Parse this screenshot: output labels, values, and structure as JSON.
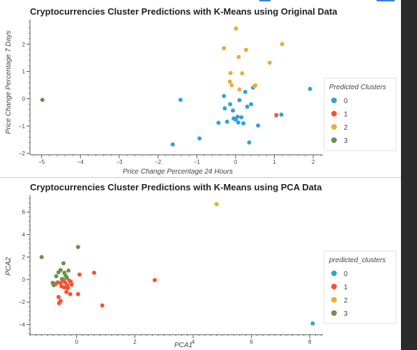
{
  "colors": {
    "cluster_0": "#30a2da",
    "cluster_1": "#fc4f30",
    "cluster_2": "#e5ae38",
    "cluster_3": "#6d904f"
  },
  "chart_data": [
    {
      "type": "scatter",
      "title": "Cryptocurrencies Cluster Predictions with K-Means using Original Data",
      "xlabel": "Price Change Percentage 24 Hours",
      "ylabel": "Price Change Percentage 7 Days",
      "xlim": [
        -5.3,
        2.25
      ],
      "ylim": [
        -2.05,
        2.9
      ],
      "xticks": [
        -5,
        -4,
        -3,
        -2,
        -1,
        0,
        1,
        2
      ],
      "yticks": [
        -2,
        -1,
        0,
        1,
        2
      ],
      "legend_title": "Predicted Clusters",
      "legend_position": "right",
      "series": [
        {
          "name": "0",
          "color": "#30a2da",
          "points": [
            [
              -1.62,
              -1.67
            ],
            [
              -1.42,
              -0.04
            ],
            [
              -0.93,
              -1.45
            ],
            [
              -0.44,
              -0.88
            ],
            [
              -0.3,
              0.1
            ],
            [
              -0.28,
              -0.35
            ],
            [
              -0.22,
              -0.84
            ],
            [
              -0.14,
              -0.2
            ],
            [
              -0.07,
              -0.43
            ],
            [
              -0.05,
              -0.72
            ],
            [
              0.0,
              -0.76
            ],
            [
              0.05,
              -0.66
            ],
            [
              0.07,
              -0.87
            ],
            [
              0.1,
              -0.05
            ],
            [
              0.15,
              -0.68
            ],
            [
              0.2,
              -0.9
            ],
            [
              0.25,
              0.25
            ],
            [
              0.3,
              -0.29
            ],
            [
              0.35,
              -1.6
            ],
            [
              0.4,
              -0.2
            ],
            [
              0.45,
              0.41
            ],
            [
              0.58,
              -0.98
            ],
            [
              1.18,
              -0.58
            ],
            [
              1.92,
              0.36
            ]
          ]
        },
        {
          "name": "1",
          "color": "#fc4f30",
          "points": [
            [
              1.05,
              -0.6
            ]
          ]
        },
        {
          "name": "2",
          "color": "#e5ae38",
          "points": [
            [
              -0.3,
              1.85
            ],
            [
              -0.15,
              0.63
            ],
            [
              -0.13,
              0.94
            ],
            [
              -0.1,
              0.5
            ],
            [
              0.01,
              2.57
            ],
            [
              0.08,
              1.53
            ],
            [
              0.1,
              0.34
            ],
            [
              0.17,
              0.93
            ],
            [
              0.27,
              1.79
            ],
            [
              0.48,
              0.46
            ],
            [
              0.51,
              0.49
            ],
            [
              0.88,
              1.32
            ],
            [
              1.2,
              2.0
            ]
          ]
        },
        {
          "name": "3",
          "color": "#6d904f",
          "points": [
            [
              -4.98,
              -0.04
            ]
          ]
        }
      ]
    },
    {
      "type": "scatter",
      "title": "Cryptocurrencies Cluster Predictions with K-Means using PCA Data",
      "xlabel": "PCA1",
      "ylabel": "PCA2",
      "xlim": [
        -1.6,
        8.45
      ],
      "ylim": [
        -4.9,
        7.5
      ],
      "xticks": [
        0,
        2,
        4,
        6,
        8
      ],
      "yticks": [
        -4,
        -2,
        0,
        2,
        4,
        6
      ],
      "legend_title": "predicted_clusters",
      "legend_position": "right",
      "series": [
        {
          "name": "0",
          "color": "#30a2da",
          "points": [
            [
              8.1,
              -3.9
            ]
          ]
        },
        {
          "name": "1",
          "color": "#fc4f30",
          "points": [
            [
              -0.72,
              -0.4
            ],
            [
              -0.65,
              -0.25
            ],
            [
              -0.62,
              -1.55
            ],
            [
              -0.6,
              -2.1
            ],
            [
              -0.55,
              -1.9
            ],
            [
              -0.55,
              -0.3
            ],
            [
              -0.52,
              -0.6
            ],
            [
              -0.45,
              -0.05
            ],
            [
              -0.42,
              -0.7
            ],
            [
              -0.4,
              -0.25
            ],
            [
              -0.35,
              -1.1
            ],
            [
              -0.32,
              -0.5
            ],
            [
              -0.3,
              -0.75
            ],
            [
              -0.25,
              -0.1
            ],
            [
              -0.22,
              -1.3
            ],
            [
              -0.2,
              -0.2
            ],
            [
              -0.17,
              -0.45
            ],
            [
              0.05,
              -1.3
            ],
            [
              0.1,
              0.45
            ],
            [
              0.6,
              0.6
            ],
            [
              0.88,
              -2.3
            ],
            [
              2.68,
              -0.05
            ]
          ]
        },
        {
          "name": "2",
          "color": "#e5ae38",
          "points": [
            [
              4.8,
              6.7
            ]
          ]
        },
        {
          "name": "3",
          "color": "#6d904f",
          "points": [
            [
              -1.2,
              2.0
            ],
            [
              -0.82,
              -0.3
            ],
            [
              -0.78,
              -0.5
            ],
            [
              -0.7,
              0.3
            ],
            [
              -0.62,
              0.65
            ],
            [
              -0.55,
              0.85
            ],
            [
              -0.5,
              0.05
            ],
            [
              -0.45,
              1.45
            ],
            [
              -0.42,
              0.6
            ],
            [
              -0.38,
              0.35
            ],
            [
              -0.33,
              0.15
            ],
            [
              -0.28,
              0.8
            ],
            [
              0.05,
              2.9
            ]
          ]
        }
      ]
    }
  ]
}
